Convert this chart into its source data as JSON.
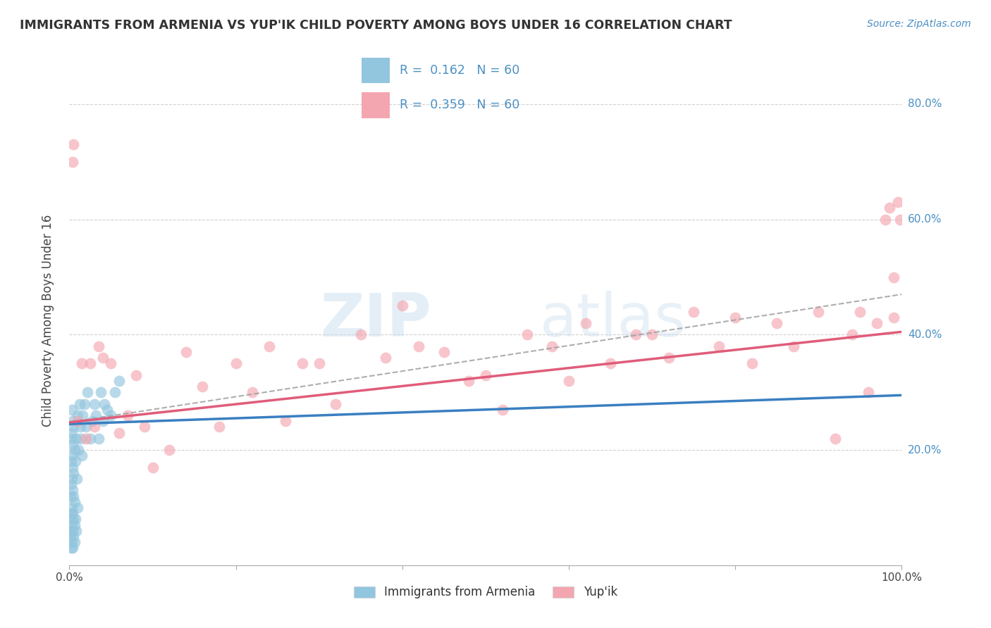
{
  "title": "IMMIGRANTS FROM ARMENIA VS YUP'IK CHILD POVERTY AMONG BOYS UNDER 16 CORRELATION CHART",
  "source": "Source: ZipAtlas.com",
  "ylabel": "Child Poverty Among Boys Under 16",
  "xlim": [
    0,
    1.0
  ],
  "ylim": [
    0,
    0.85
  ],
  "legend_bottom_label1": "Immigrants from Armenia",
  "legend_bottom_label2": "Yup'ik",
  "color_armenia": "#92c5de",
  "color_yupik": "#f4a6b0",
  "color_line_armenia": "#3a7fc1",
  "color_line_yupik": "#e05c7a",
  "color_line_dashed": "#a0a0a0",
  "R_armenia": 0.162,
  "R_yupik": 0.359,
  "N": 60,
  "watermark_zip": "ZIP",
  "watermark_atlas": "atlas",
  "armenia_x": [
    0.001,
    0.001,
    0.001,
    0.002,
    0.002,
    0.002,
    0.002,
    0.002,
    0.002,
    0.003,
    0.003,
    0.003,
    0.003,
    0.003,
    0.003,
    0.003,
    0.004,
    0.004,
    0.004,
    0.004,
    0.004,
    0.004,
    0.004,
    0.005,
    0.005,
    0.005,
    0.005,
    0.005,
    0.006,
    0.006,
    0.006,
    0.006,
    0.007,
    0.007,
    0.008,
    0.008,
    0.009,
    0.01,
    0.01,
    0.011,
    0.012,
    0.013,
    0.014,
    0.015,
    0.016,
    0.018,
    0.02,
    0.022,
    0.025,
    0.028,
    0.03,
    0.032,
    0.035,
    0.038,
    0.04,
    0.042,
    0.045,
    0.05,
    0.055,
    0.06
  ],
  "armenia_y": [
    0.05,
    0.08,
    0.12,
    0.03,
    0.06,
    0.09,
    0.14,
    0.18,
    0.22,
    0.04,
    0.07,
    0.1,
    0.15,
    0.19,
    0.23,
    0.27,
    0.03,
    0.06,
    0.09,
    0.13,
    0.17,
    0.21,
    0.25,
    0.05,
    0.08,
    0.12,
    0.16,
    0.24,
    0.04,
    0.07,
    0.11,
    0.2,
    0.08,
    0.18,
    0.06,
    0.22,
    0.15,
    0.1,
    0.26,
    0.2,
    0.28,
    0.24,
    0.22,
    0.19,
    0.26,
    0.28,
    0.24,
    0.3,
    0.22,
    0.25,
    0.28,
    0.26,
    0.22,
    0.3,
    0.25,
    0.28,
    0.27,
    0.26,
    0.3,
    0.32
  ],
  "yupik_x": [
    0.004,
    0.005,
    0.01,
    0.015,
    0.02,
    0.025,
    0.03,
    0.035,
    0.04,
    0.05,
    0.06,
    0.07,
    0.08,
    0.09,
    0.1,
    0.12,
    0.14,
    0.16,
    0.18,
    0.2,
    0.22,
    0.24,
    0.26,
    0.28,
    0.3,
    0.32,
    0.35,
    0.38,
    0.4,
    0.42,
    0.45,
    0.48,
    0.5,
    0.52,
    0.55,
    0.58,
    0.6,
    0.62,
    0.65,
    0.68,
    0.7,
    0.72,
    0.75,
    0.78,
    0.8,
    0.82,
    0.85,
    0.87,
    0.9,
    0.92,
    0.94,
    0.95,
    0.96,
    0.97,
    0.98,
    0.985,
    0.99,
    0.99,
    0.995,
    0.998
  ],
  "yupik_y": [
    0.7,
    0.73,
    0.25,
    0.35,
    0.22,
    0.35,
    0.24,
    0.38,
    0.36,
    0.35,
    0.23,
    0.26,
    0.33,
    0.24,
    0.17,
    0.2,
    0.37,
    0.31,
    0.24,
    0.35,
    0.3,
    0.38,
    0.25,
    0.35,
    0.35,
    0.28,
    0.4,
    0.36,
    0.45,
    0.38,
    0.37,
    0.32,
    0.33,
    0.27,
    0.4,
    0.38,
    0.32,
    0.42,
    0.35,
    0.4,
    0.4,
    0.36,
    0.44,
    0.38,
    0.43,
    0.35,
    0.42,
    0.38,
    0.44,
    0.22,
    0.4,
    0.44,
    0.3,
    0.42,
    0.6,
    0.62,
    0.43,
    0.5,
    0.63,
    0.6
  ],
  "line_armenia_x0": 0.0,
  "line_armenia_y0": 0.245,
  "line_armenia_x1": 1.0,
  "line_armenia_y1": 0.295,
  "line_yupik_x0": 0.0,
  "line_yupik_y0": 0.248,
  "line_yupik_x1": 1.0,
  "line_yupik_y1": 0.405,
  "line_dash_x0": 0.0,
  "line_dash_y0": 0.248,
  "line_dash_x1": 1.0,
  "line_dash_y1": 0.47
}
